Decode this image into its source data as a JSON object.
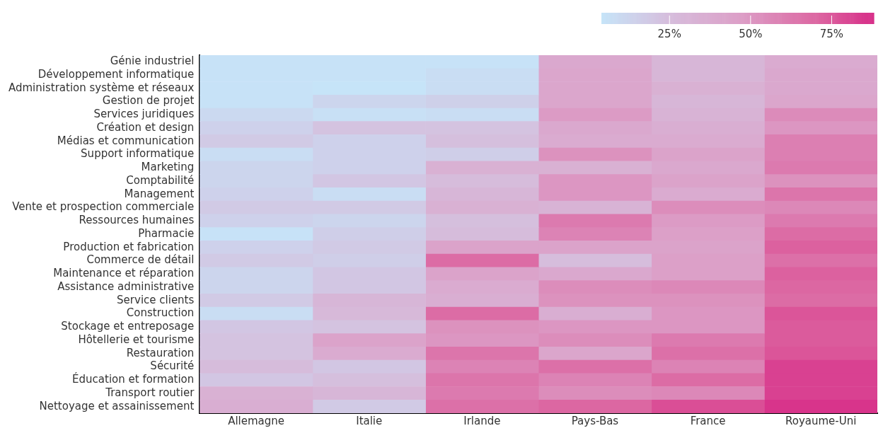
{
  "chart_data": {
    "type": "heatmap",
    "categories": [
      "Allemagne",
      "Italie",
      "Irlande",
      "Pays-Bas",
      "France",
      "Royaume-Uni"
    ],
    "y_categories": [
      "Génie industriel",
      "Développement informatique",
      "Administration système et réseaux",
      "Gestion de projet",
      "Services juridiques",
      "Création et design",
      "Médias et communication",
      "Support informatique",
      "Marketing",
      "Comptabilité",
      "Management",
      "Vente et prospection commerciale",
      "Ressources humaines",
      "Pharmacie",
      "Production et fabrication",
      "Commerce de détail",
      "Maintenance et réparation",
      "Assistance administrative",
      "Service clients",
      "Construction",
      "Stockage et entreposage",
      "Hôtellerie et tourisme",
      "Restauration",
      "Sécurité",
      "Éducation et formation",
      "Transport routier",
      "Nettoyage et assainissement"
    ],
    "cells": [
      [
        5,
        5,
        5,
        40,
        30,
        38
      ],
      [
        5,
        5,
        8,
        42,
        30,
        40
      ],
      [
        5,
        4,
        8,
        42,
        34,
        40
      ],
      [
        5,
        12,
        15,
        42,
        30,
        42
      ],
      [
        10,
        6,
        8,
        48,
        32,
        55
      ],
      [
        14,
        22,
        22,
        40,
        36,
        50
      ],
      [
        18,
        14,
        24,
        38,
        38,
        60
      ],
      [
        8,
        14,
        16,
        52,
        44,
        60
      ],
      [
        12,
        14,
        34,
        34,
        40,
        62
      ],
      [
        12,
        20,
        26,
        50,
        44,
        52
      ],
      [
        14,
        8,
        30,
        50,
        38,
        64
      ],
      [
        18,
        18,
        34,
        32,
        54,
        56
      ],
      [
        14,
        12,
        24,
        62,
        48,
        62
      ],
      [
        5,
        16,
        26,
        58,
        46,
        68
      ],
      [
        14,
        18,
        44,
        44,
        44,
        72
      ],
      [
        18,
        16,
        68,
        25,
        46,
        66
      ],
      [
        12,
        20,
        44,
        40,
        46,
        72
      ],
      [
        12,
        20,
        38,
        54,
        56,
        70
      ],
      [
        18,
        30,
        36,
        52,
        52,
        68
      ],
      [
        8,
        28,
        68,
        36,
        50,
        76
      ],
      [
        20,
        22,
        52,
        50,
        50,
        74
      ],
      [
        22,
        44,
        50,
        54,
        62,
        74
      ],
      [
        22,
        38,
        64,
        42,
        66,
        76
      ],
      [
        26,
        20,
        58,
        66,
        58,
        82
      ],
      [
        20,
        24,
        64,
        58,
        68,
        82
      ],
      [
        34,
        30,
        62,
        54,
        56,
        82
      ],
      [
        36,
        18,
        66,
        70,
        78,
        86
      ]
    ],
    "clim": [
      4,
      88
    ],
    "cticks": [
      {
        "value": 25,
        "label": "25%"
      },
      {
        "value": 50,
        "label": "50%"
      },
      {
        "value": 75,
        "label": "75%"
      }
    ]
  }
}
